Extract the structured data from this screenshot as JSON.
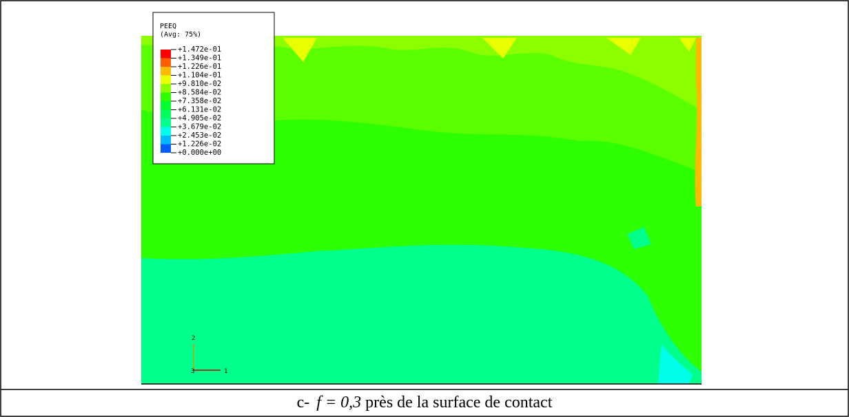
{
  "figure": {
    "legend": {
      "title": "PEEQ",
      "subtitle": "(Avg: 75%)",
      "labels": [
        "+1.472e-01",
        "+1.349e-01",
        "+1.226e-01",
        "+1.104e-01",
        "+9.810e-02",
        "+8.584e-02",
        "+7.358e-02",
        "+6.131e-02",
        "+4.905e-02",
        "+3.679e-02",
        "+2.453e-02",
        "+1.226e-02",
        "+0.000e+00"
      ],
      "colors": [
        "#ff0000",
        "#ff5d00",
        "#ffb900",
        "#e8ff00",
        "#8bff00",
        "#2eff00",
        "#00ff2e",
        "#00ff5d",
        "#00ff8b",
        "#00ffe8",
        "#00b9ff",
        "#005dff",
        "#0000ff"
      ]
    },
    "triad": {
      "axis_2": "2",
      "axis_3": "3",
      "axis_1": "1"
    }
  },
  "caption": {
    "prefix": "c-",
    "formula": "f = 0,3",
    "text": "près de la surface de contact"
  }
}
